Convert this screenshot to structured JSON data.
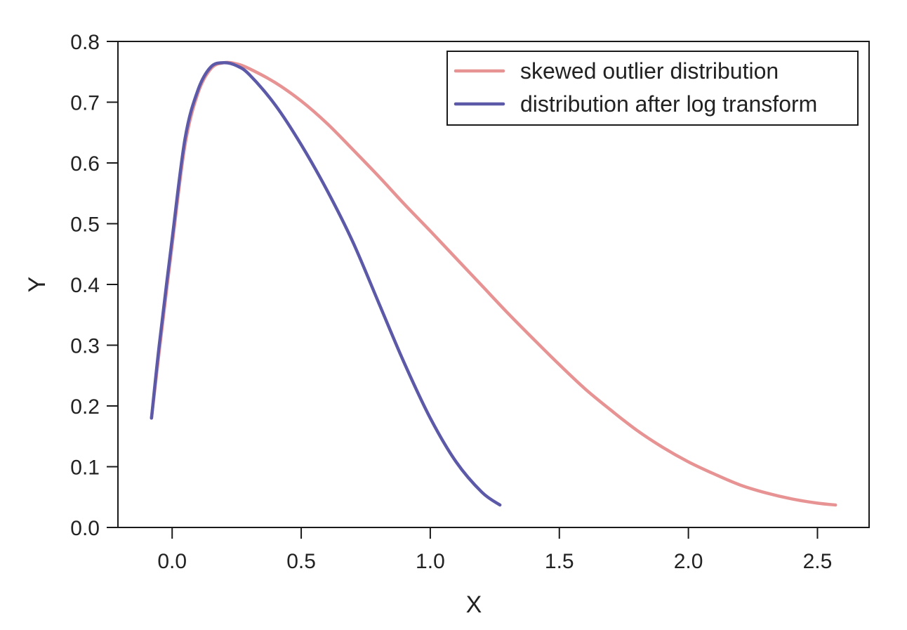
{
  "chart_data": {
    "type": "line",
    "title": "",
    "xlabel": "X",
    "ylabel": "Y",
    "xlim": [
      -0.21,
      2.7
    ],
    "ylim": [
      0.0,
      0.8
    ],
    "xticks": [
      0.0,
      0.5,
      1.0,
      1.5,
      2.0,
      2.5
    ],
    "xtick_labels": [
      "0.0",
      "0.5",
      "1.0",
      "1.5",
      "2.0",
      "2.5"
    ],
    "yticks": [
      0.0,
      0.1,
      0.2,
      0.3,
      0.4,
      0.5,
      0.6,
      0.7,
      0.8
    ],
    "ytick_labels": [
      "0.0",
      "0.1",
      "0.2",
      "0.3",
      "0.4",
      "0.5",
      "0.6",
      "0.7",
      "0.8"
    ],
    "grid": false,
    "legend_position": "top-right",
    "series": [
      {
        "name": "skewed outlier distribution",
        "color": "#e89393",
        "x": [
          -0.08,
          -0.05,
          0.0,
          0.05,
          0.1,
          0.15,
          0.2,
          0.25,
          0.3,
          0.4,
          0.5,
          0.6,
          0.7,
          0.8,
          0.9,
          1.0,
          1.1,
          1.2,
          1.3,
          1.4,
          1.5,
          1.6,
          1.7,
          1.8,
          1.9,
          2.0,
          2.1,
          2.2,
          2.3,
          2.4,
          2.5,
          2.57
        ],
        "y": [
          0.18,
          0.29,
          0.465,
          0.63,
          0.715,
          0.755,
          0.765,
          0.763,
          0.755,
          0.732,
          0.702,
          0.665,
          0.622,
          0.578,
          0.532,
          0.488,
          0.443,
          0.398,
          0.353,
          0.31,
          0.268,
          0.228,
          0.193,
          0.16,
          0.132,
          0.108,
          0.088,
          0.07,
          0.057,
          0.047,
          0.04,
          0.037
        ]
      },
      {
        "name": "distribution after log transform",
        "color": "#5c5aa8",
        "x": [
          -0.08,
          -0.05,
          0.0,
          0.05,
          0.1,
          0.15,
          0.2,
          0.25,
          0.3,
          0.4,
          0.5,
          0.6,
          0.7,
          0.8,
          0.9,
          1.0,
          1.1,
          1.2,
          1.27
        ],
        "y": [
          0.18,
          0.3,
          0.475,
          0.64,
          0.72,
          0.758,
          0.765,
          0.76,
          0.745,
          0.695,
          0.63,
          0.555,
          0.47,
          0.37,
          0.27,
          0.18,
          0.108,
          0.058,
          0.037
        ]
      }
    ]
  }
}
